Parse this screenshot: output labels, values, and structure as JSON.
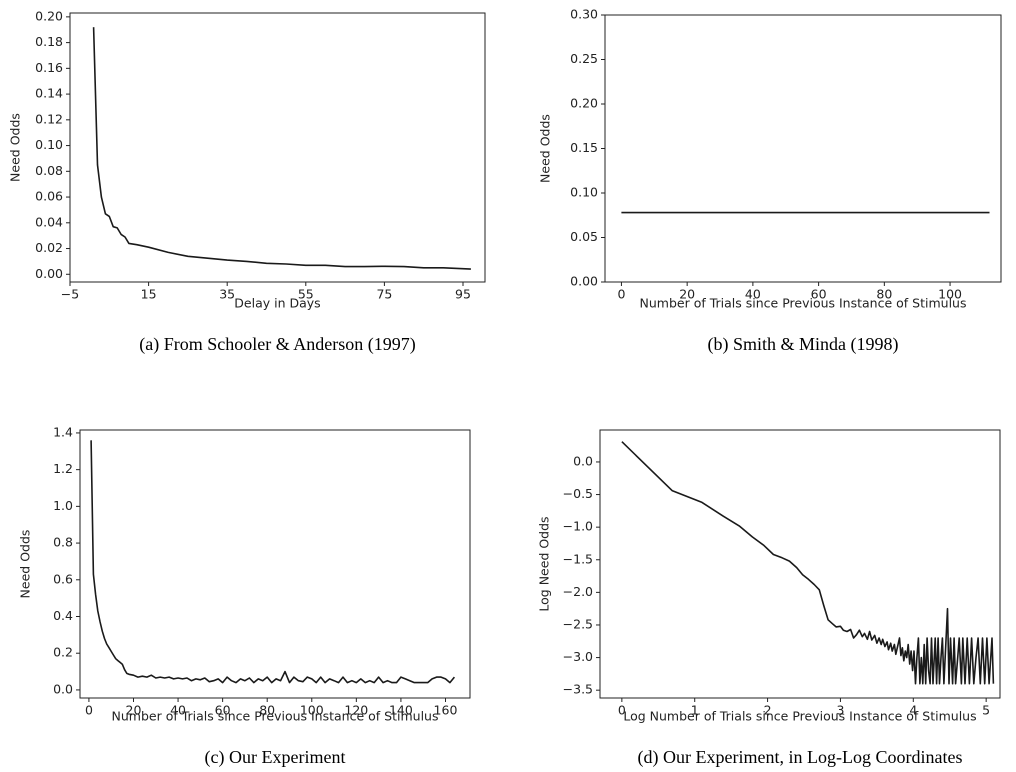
{
  "chart_data": [
    {
      "type": "line",
      "caption": "(a) From Schooler & Anderson (1997)",
      "x_label": "Delay in Days",
      "y_label": "Need Odds",
      "color": "#1a1a1a",
      "xlim": [
        -5,
        100.6
      ],
      "ylim": [
        -0.006,
        0.203
      ],
      "xticks": [
        {
          "value": -5,
          "label": "−5"
        },
        15,
        35,
        55,
        75,
        95
      ],
      "yticks": [
        {
          "value": 0,
          "label": "0.00"
        },
        0.02,
        0.04,
        0.06,
        0.08,
        {
          "value": 0.1,
          "label": "0.10"
        },
        0.12,
        0.14,
        0.16,
        0.18,
        {
          "value": 0.2,
          "label": "0.20"
        }
      ],
      "x": [
        1,
        2,
        3,
        4,
        5,
        6,
        7,
        8,
        9,
        10,
        12,
        15,
        20,
        25,
        30,
        35,
        40,
        45,
        50,
        55,
        60,
        65,
        70,
        75,
        80,
        85,
        90,
        97
      ],
      "values": [
        0.192,
        0.085,
        0.06,
        0.047,
        0.045,
        0.037,
        0.036,
        0.031,
        0.029,
        0.024,
        0.023,
        0.021,
        0.017,
        0.014,
        0.0125,
        0.011,
        0.01,
        0.0085,
        0.008,
        0.007,
        0.007,
        0.006,
        0.006,
        0.0062,
        0.006,
        0.005,
        0.005,
        0.004
      ]
    },
    {
      "type": "line",
      "caption": "(b) Smith & Minda (1998)",
      "x_label": "Number of Trials since Previous Instance of Stimulus",
      "y_label": "Need Odds",
      "color": "#1a1a1a",
      "xlim": [
        -5,
        115.5
      ],
      "ylim": [
        0,
        0.3
      ],
      "xticks": [
        0,
        20,
        40,
        60,
        80,
        100
      ],
      "yticks": [
        {
          "value": 0,
          "label": "0.00"
        },
        0.05,
        {
          "value": 0.1,
          "label": "0.10"
        },
        0.15,
        {
          "value": 0.2,
          "label": "0.20"
        },
        0.25,
        {
          "value": 0.3,
          "label": "0.30"
        }
      ],
      "x": [
        0,
        112
      ],
      "values": [
        0.078,
        0.078
      ]
    },
    {
      "type": "line",
      "caption": "(c) Our Experiment",
      "x_label": "Number of Trials since Previous Instance of Stimulus",
      "y_label": "Need Odds",
      "color": "#1a1a1a",
      "xlim": [
        -4,
        171
      ],
      "ylim": [
        -0.044,
        1.416
      ],
      "xticks": [
        0,
        20,
        40,
        60,
        80,
        100,
        120,
        140,
        160
      ],
      "yticks": [
        {
          "value": 0,
          "label": "0.0"
        },
        0.2,
        0.4,
        0.6,
        0.8,
        {
          "value": 1,
          "label": "1.0"
        },
        1.2,
        1.4
      ],
      "x": [
        1,
        2,
        3,
        4,
        5,
        6,
        7,
        8,
        9,
        10,
        11,
        12,
        13,
        14,
        15,
        16,
        17,
        18,
        20,
        22,
        24,
        26,
        28,
        30,
        32,
        34,
        36,
        38,
        40,
        42,
        44,
        46,
        48,
        50,
        52,
        54,
        56,
        58,
        60,
        62,
        64,
        66,
        68,
        70,
        72,
        74,
        76,
        78,
        80,
        82,
        84,
        86,
        88,
        90,
        92,
        94,
        96,
        98,
        100,
        102,
        104,
        106,
        108,
        110,
        112,
        114,
        116,
        118,
        120,
        122,
        124,
        126,
        128,
        130,
        132,
        134,
        136,
        138,
        140,
        142,
        144,
        146,
        148,
        150,
        152,
        154,
        156,
        158,
        160,
        162,
        164
      ],
      "values": [
        1.36,
        0.63,
        0.52,
        0.43,
        0.37,
        0.32,
        0.28,
        0.25,
        0.23,
        0.21,
        0.19,
        0.17,
        0.16,
        0.15,
        0.14,
        0.11,
        0.09,
        0.085,
        0.08,
        0.07,
        0.075,
        0.07,
        0.08,
        0.065,
        0.07,
        0.065,
        0.07,
        0.06,
        0.065,
        0.06,
        0.065,
        0.05,
        0.06,
        0.055,
        0.065,
        0.045,
        0.05,
        0.06,
        0.04,
        0.07,
        0.05,
        0.04,
        0.06,
        0.05,
        0.065,
        0.04,
        0.06,
        0.05,
        0.07,
        0.04,
        0.06,
        0.05,
        0.1,
        0.04,
        0.07,
        0.05,
        0.045,
        0.07,
        0.06,
        0.04,
        0.07,
        0.04,
        0.06,
        0.05,
        0.04,
        0.07,
        0.04,
        0.05,
        0.04,
        0.06,
        0.04,
        0.05,
        0.04,
        0.07,
        0.04,
        0.05,
        0.04,
        0.04,
        0.07,
        0.06,
        0.05,
        0.04,
        0.04,
        0.04,
        0.04,
        0.06,
        0.07,
        0.07,
        0.06,
        0.04,
        0.07
      ]
    },
    {
      "type": "line",
      "caption": "(d) Our Experiment, in Log-Log Coordinates",
      "x_label": "Log Number of Trials since Previous Instance of Stimulus",
      "y_label": "Log Need Odds",
      "color": "#1a1a1a",
      "xlim": [
        -0.3,
        5.19
      ],
      "ylim": [
        -3.62,
        0.49
      ],
      "xticks": [
        0,
        1,
        2,
        3,
        4,
        5
      ],
      "yticks": [
        {
          "value": 0,
          "label": "0.0"
        },
        {
          "value": -0.5,
          "label": "−0.5"
        },
        {
          "value": -1,
          "label": "−1.0"
        },
        {
          "value": -1.5,
          "label": "−1.5"
        },
        {
          "value": -2,
          "label": "−2.0"
        },
        {
          "value": -2.5,
          "label": "−2.5"
        },
        {
          "value": -3,
          "label": "−3.0"
        },
        {
          "value": -3.5,
          "label": "−3.5"
        }
      ],
      "x": [
        0,
        0.69,
        1.1,
        1.39,
        1.61,
        1.79,
        1.95,
        2.08,
        2.2,
        2.3,
        2.4,
        2.48,
        2.56,
        2.64,
        2.71,
        2.77,
        2.83,
        2.89,
        2.94,
        3.0,
        3.04,
        3.09,
        3.14,
        3.18,
        3.22,
        3.26,
        3.3,
        3.33,
        3.37,
        3.4,
        3.43,
        3.47,
        3.5,
        3.53,
        3.56,
        3.58,
        3.61,
        3.64,
        3.66,
        3.69,
        3.71,
        3.74,
        3.76,
        3.78,
        3.81,
        3.83,
        3.85,
        3.87,
        3.89,
        3.91,
        3.93,
        3.95,
        3.97,
        3.99,
        4.01,
        4.03,
        4.05,
        4.07,
        4.09,
        4.11,
        4.13,
        4.15,
        4.17,
        4.19,
        4.21,
        4.23,
        4.25,
        4.27,
        4.3,
        4.32,
        4.34,
        4.36,
        4.38,
        4.4,
        4.42,
        4.45,
        4.47,
        4.49,
        4.51,
        4.54,
        4.56,
        4.58,
        4.61,
        4.63,
        4.66,
        4.68,
        4.71,
        4.74,
        4.77,
        4.8,
        4.83,
        4.86,
        4.89,
        4.92,
        4.95,
        4.98,
        5.01,
        5.04,
        5.08,
        5.1
      ],
      "values": [
        0.31,
        -0.44,
        -0.62,
        -0.83,
        -0.98,
        -1.15,
        -1.28,
        -1.42,
        -1.47,
        -1.52,
        -1.62,
        -1.73,
        -1.8,
        -1.88,
        -1.96,
        -2.2,
        -2.42,
        -2.48,
        -2.53,
        -2.52,
        -2.58,
        -2.6,
        -2.57,
        -2.7,
        -2.65,
        -2.58,
        -2.68,
        -2.63,
        -2.72,
        -2.6,
        -2.73,
        -2.66,
        -2.78,
        -2.7,
        -2.8,
        -2.72,
        -2.83,
        -2.76,
        -2.88,
        -2.78,
        -2.9,
        -2.8,
        -2.95,
        -2.85,
        -2.7,
        -2.97,
        -2.85,
        -3.05,
        -2.9,
        -3.0,
        -2.8,
        -3.1,
        -2.9,
        -3.2,
        -2.9,
        -3.4,
        -3.0,
        -2.7,
        -3.4,
        -3.0,
        -3.4,
        -2.8,
        -3.4,
        -2.7,
        -3.2,
        -3.4,
        -2.7,
        -3.4,
        -2.7,
        -3.4,
        -2.7,
        -3.4,
        -3.0,
        -2.7,
        -3.4,
        -2.7,
        -2.25,
        -3.4,
        -2.7,
        -3.4,
        -2.7,
        -3.4,
        -3.0,
        -2.7,
        -3.4,
        -2.7,
        -3.4,
        -2.7,
        -3.4,
        -2.7,
        -3.4,
        -3.0,
        -2.7,
        -3.4,
        -2.7,
        -3.4,
        -2.7,
        -3.4,
        -2.7,
        -3.4
      ]
    }
  ]
}
